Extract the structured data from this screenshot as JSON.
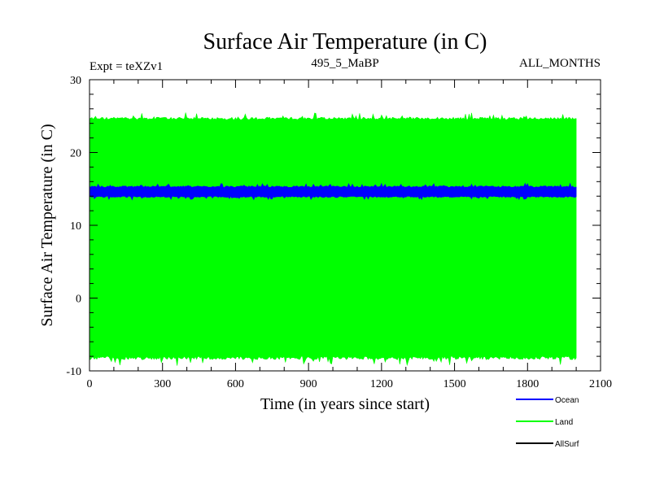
{
  "chart_data": {
    "type": "line",
    "title": "Surface Air Temperature (in C)",
    "subtitle_left": "Expt = teXZv1",
    "subtitle_center": "495_5_MaBP",
    "subtitle_right": "ALL_MONTHS",
    "xlabel": "Time (in years since start)",
    "ylabel": "Surface Air Temperature (in C)",
    "xlim": [
      0,
      2100
    ],
    "ylim": [
      -10,
      30
    ],
    "x_ticks": [
      0,
      300,
      600,
      900,
      1200,
      1500,
      1800,
      2100
    ],
    "y_ticks": [
      -10,
      0,
      10,
      20,
      30
    ],
    "x_minor_step": 100,
    "y_minor_step": 2,
    "series": [
      {
        "name": "Land",
        "color": "#00ff00",
        "x_range": [
          0,
          2000
        ],
        "band_min": -8.0,
        "band_max": 24.5,
        "min": -9.3,
        "max": 25.5
      },
      {
        "name": "Ocean",
        "color": "#0000ff",
        "x_range": [
          0,
          2000
        ],
        "band_min": 14.0,
        "band_max": 15.2,
        "min": 13.5,
        "max": 15.8
      },
      {
        "name": "AllSurf",
        "color": "#000000",
        "x_range": [
          0,
          2000
        ],
        "band_min": null,
        "band_max": null,
        "min": null,
        "max": null
      }
    ],
    "legend": {
      "position": "bottom-right",
      "entries": [
        "Ocean",
        "Land",
        "AllSurf"
      ]
    }
  }
}
